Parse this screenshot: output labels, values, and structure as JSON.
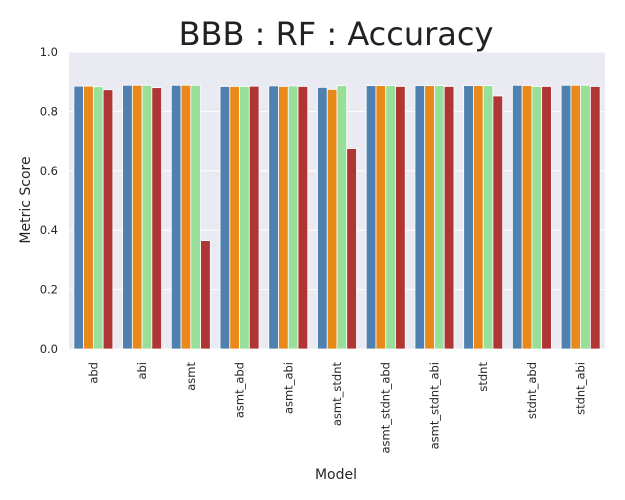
{
  "chart_data": {
    "type": "bar",
    "title": "BBB : RF : Accuracy",
    "xlabel": "Model",
    "ylabel": "Metric Score",
    "ylim": [
      0.0,
      1.0
    ],
    "yticks": [
      "0.0",
      "0.2",
      "0.4",
      "0.6",
      "0.8",
      "1.0"
    ],
    "grid": true,
    "legend": "none",
    "categories": [
      "abd",
      "abi",
      "asmt",
      "asmt_abd",
      "asmt_abi",
      "asmt_stdnt",
      "asmt_stdnt_abd",
      "asmt_stdnt_abi",
      "stdnt",
      "stdnt_abd",
      "stdnt_abi"
    ],
    "series": [
      {
        "color": "#4e81b0",
        "values": [
          0.885,
          0.888,
          0.888,
          0.884,
          0.886,
          0.881,
          0.887,
          0.887,
          0.887,
          0.888,
          0.888
        ]
      },
      {
        "color": "#e8891a",
        "values": [
          0.885,
          0.888,
          0.888,
          0.884,
          0.884,
          0.874,
          0.887,
          0.887,
          0.887,
          0.887,
          0.888
        ]
      },
      {
        "color": "#98e09a",
        "values": [
          0.883,
          0.888,
          0.888,
          0.884,
          0.886,
          0.887,
          0.887,
          0.887,
          0.887,
          0.884,
          0.888
        ]
      },
      {
        "color": "#b03636",
        "values": [
          0.873,
          0.88,
          0.365,
          0.885,
          0.884,
          0.675,
          0.884,
          0.884,
          0.852,
          0.884,
          0.884
        ]
      }
    ]
  }
}
